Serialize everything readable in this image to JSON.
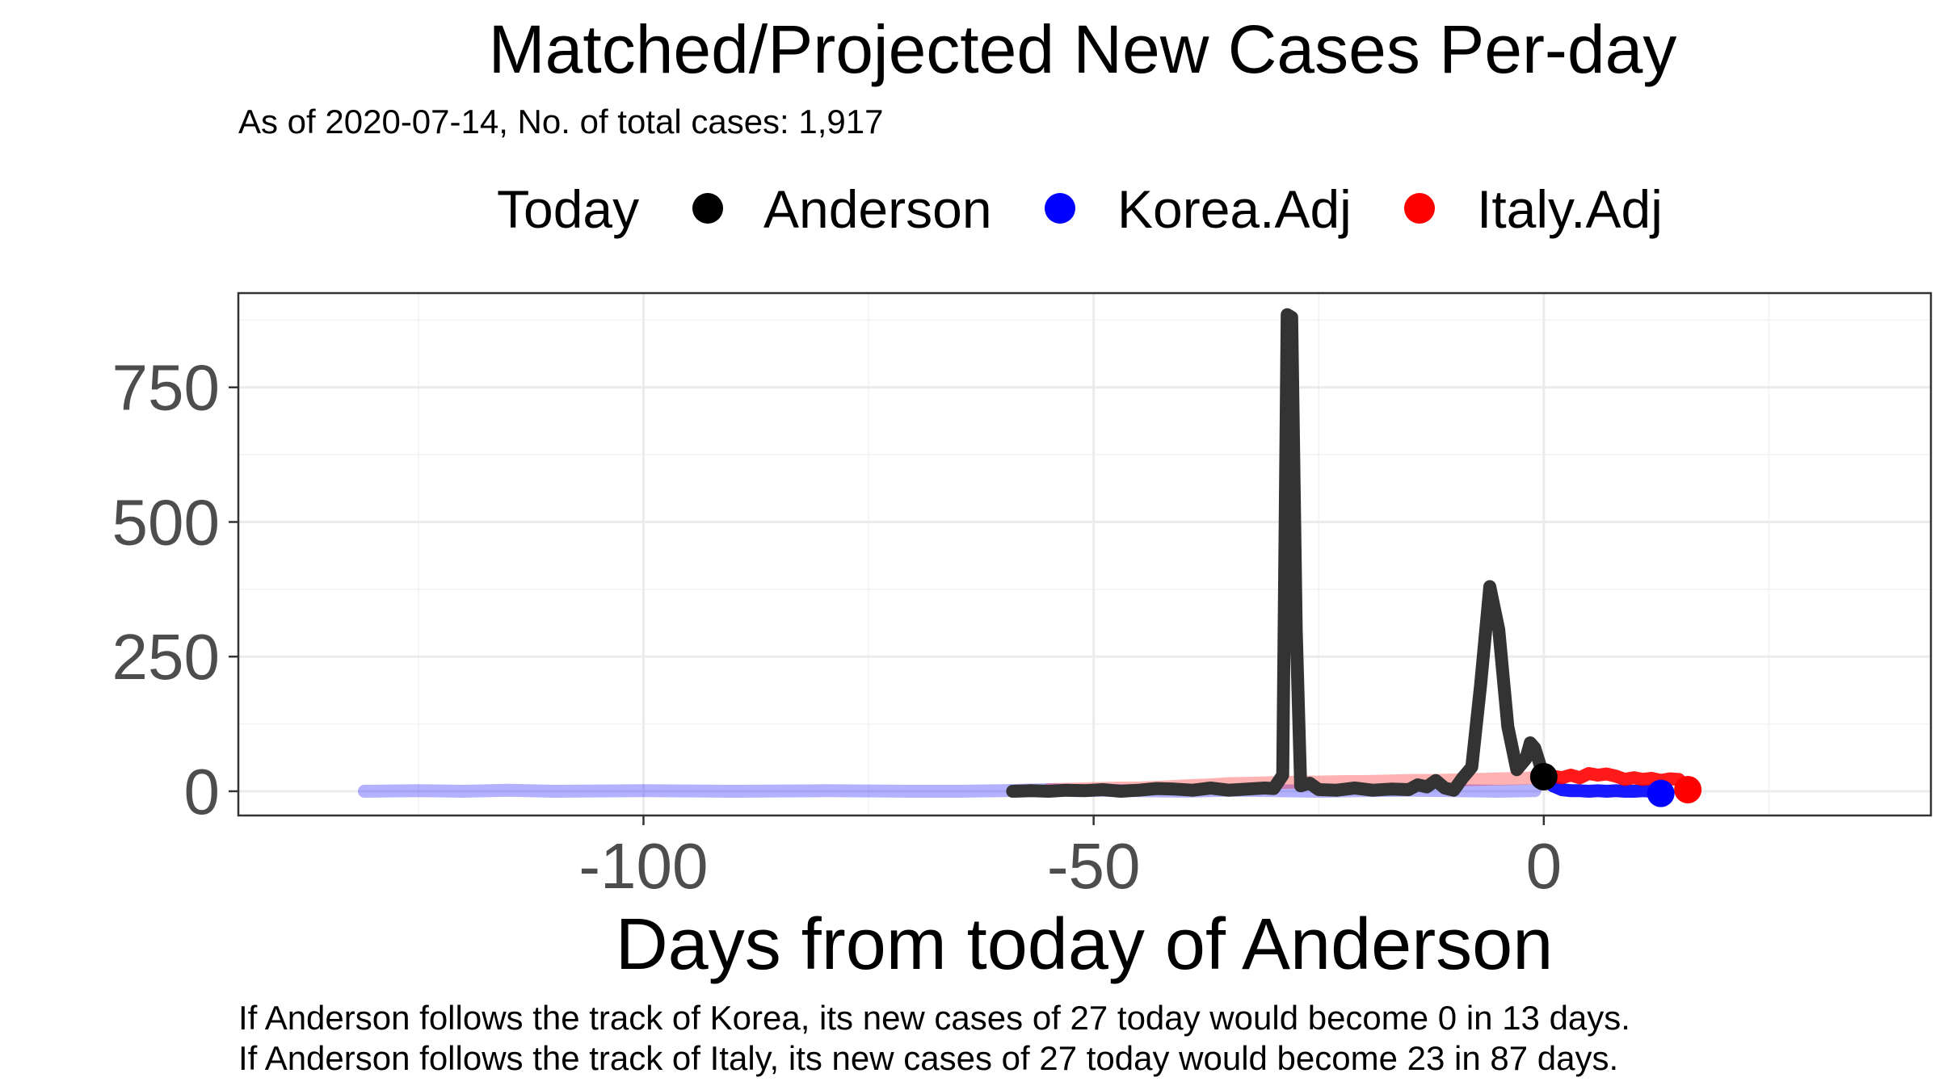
{
  "chart_data": {
    "type": "line",
    "title": "Matched/Projected New Cases Per-day",
    "subtitle": "As of 2020-07-14, No. of total cases: 1,917",
    "xlabel": "Days from today of Anderson",
    "ylabel": "",
    "xlim": [
      -145,
      43
    ],
    "ylim": [
      -45,
      925
    ],
    "x_ticks": [
      -100,
      -50,
      0
    ],
    "y_ticks": [
      0,
      250,
      500,
      750
    ],
    "x_tick_labels": [
      "-100",
      "-50",
      "0"
    ],
    "y_tick_labels": [
      "0",
      "250",
      "500",
      "750"
    ],
    "grid": true,
    "legend": {
      "position": "top",
      "title": "Today",
      "entries": [
        {
          "label": "Anderson",
          "color": "#000000"
        },
        {
          "label": "Korea.Adj",
          "color": "#0000ff"
        },
        {
          "label": "Italy.Adj",
          "color": "#ff0000"
        }
      ]
    },
    "series": [
      {
        "key": "korea_matched",
        "color": "#0000ff",
        "opacity": 0.3,
        "x": [
          -131,
          -125,
          -120,
          -115,
          -110,
          -100,
          -90,
          -80,
          -70,
          -65,
          -60,
          -58,
          -55,
          -52,
          -50,
          -45,
          -40,
          -35,
          -30,
          -25,
          -20,
          -15,
          -10,
          -5,
          -1
        ],
        "y": [
          0,
          1,
          0,
          2,
          0,
          1,
          0,
          1,
          0,
          0,
          1,
          2,
          3,
          1,
          2,
          1,
          0,
          2,
          1,
          0,
          1,
          2,
          1,
          0,
          1
        ]
      },
      {
        "key": "italy_matched",
        "color": "#ff0000",
        "opacity": 0.3,
        "x": [
          -55,
          -52,
          -50,
          -47,
          -45,
          -42,
          -40,
          -37,
          -35,
          -32,
          -30,
          -27,
          -25,
          -22,
          -20,
          -17,
          -15,
          -12,
          -10,
          -7,
          -5,
          -2,
          0
        ],
        "y": [
          3,
          4,
          5,
          6,
          6,
          8,
          10,
          12,
          14,
          15,
          16,
          17,
          17,
          18,
          18,
          19,
          20,
          20,
          21,
          22,
          23,
          24,
          27
        ]
      },
      {
        "key": "anderson_actual",
        "color": "#333333",
        "opacity": 1,
        "x": [
          -59,
          -57,
          -55,
          -53,
          -51,
          -49,
          -47,
          -45,
          -43,
          -41,
          -39,
          -37,
          -35,
          -33,
          -31,
          -30,
          -29,
          -28.5,
          -28,
          -27.5,
          -27,
          -26,
          -25,
          -23,
          -21,
          -19,
          -17,
          -15,
          -14,
          -13,
          -12,
          -11,
          -10,
          -9,
          -8,
          -7,
          -6,
          -5,
          -4,
          -3,
          -2,
          -1.5,
          -1,
          0
        ],
        "y": [
          0,
          1,
          0,
          2,
          1,
          3,
          0,
          2,
          5,
          4,
          2,
          6,
          2,
          4,
          6,
          5,
          30,
          885,
          880,
          300,
          10,
          15,
          3,
          2,
          6,
          2,
          4,
          3,
          12,
          8,
          20,
          6,
          2,
          25,
          45,
          200,
          380,
          300,
          120,
          40,
          60,
          90,
          80,
          27
        ]
      },
      {
        "key": "korea_projected",
        "color": "#0000ff",
        "opacity": 0.9,
        "x": [
          0,
          1,
          2,
          3,
          4,
          5,
          6,
          7,
          8,
          9,
          10,
          11,
          12,
          13
        ],
        "y": [
          27,
          10,
          3,
          1,
          1,
          0,
          1,
          0,
          1,
          0,
          0,
          1,
          0,
          0
        ]
      },
      {
        "key": "italy_projected",
        "color": "#ff0000",
        "opacity": 0.9,
        "x": [
          0,
          1,
          2,
          3,
          4,
          5,
          6,
          7,
          8,
          9,
          10,
          11,
          12,
          13,
          14,
          15,
          16
        ],
        "y": [
          27,
          28,
          25,
          30,
          25,
          33,
          30,
          32,
          28,
          22,
          25,
          22,
          24,
          20,
          23,
          22,
          5
        ]
      }
    ],
    "points": [
      {
        "label": "Anderson",
        "x": 0,
        "y": 27,
        "color": "#000000"
      },
      {
        "label": "Korea.Adj",
        "x": 13,
        "y": -4,
        "color": "#0000ff"
      },
      {
        "label": "Italy.Adj",
        "x": 16,
        "y": 3,
        "color": "#ff0000"
      }
    ]
  },
  "captions": [
    "If Anderson follows the track of Korea, its new cases of 27 today would become 0 in 13 days.",
    "If Anderson follows the track of Italy, its new cases of 27 today would become 23 in 87 days."
  ]
}
